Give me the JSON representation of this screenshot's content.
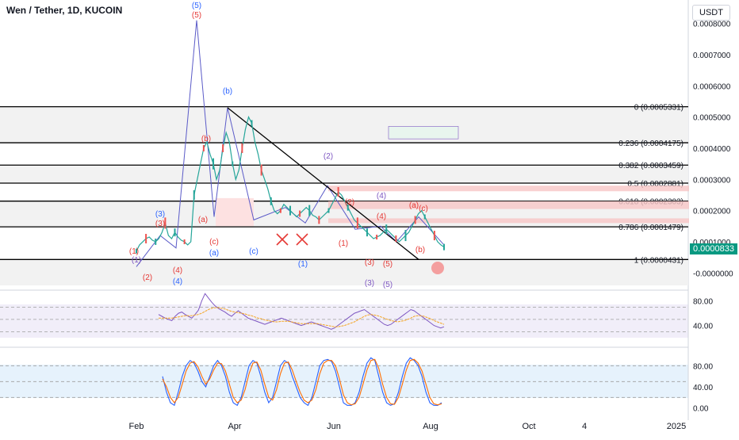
{
  "header": {
    "title": "Wen / Tether, 1D, KUCOIN",
    "currency": "USDT",
    "last_price": "0.0000833"
  },
  "colors": {
    "fib_line": "#000000",
    "fib_band": "#f2f2f2",
    "path": "#5b5bc8",
    "wave_red": "#e53935",
    "wave_blue": "#2962ff",
    "wave_purple": "#7e57c2",
    "zone_red": "#f7c6c6",
    "price_tag": "#089981",
    "rsi": "#7e57c2",
    "rsi_ma": "#f5a623",
    "stoch_k": "#2962ff",
    "stoch_d": "#ff6d00"
  },
  "chart_data": [
    {
      "type": "line",
      "pane": "price",
      "y_ticks": [
        "0.0008000",
        "0.0007000",
        "0.0006000",
        "0.0005000",
        "0.0004000",
        "0.0003000",
        "0.0002000",
        "0.0001000",
        "-0.0000000"
      ],
      "y_tick_values": [
        0.0008,
        0.0007,
        0.0006,
        0.0005,
        0.0004,
        0.0003,
        0.0002,
        0.0001,
        0.0
      ],
      "ylim": [
        -4e-05,
        0.00085
      ],
      "x_ticks": [
        "Feb",
        "Apr",
        "Jun",
        "Aug",
        "Oct",
        "4",
        "2025"
      ],
      "fib_levels": [
        {
          "ratio": "0",
          "value": 0.0005331,
          "label": "0 (0.0005331)"
        },
        {
          "ratio": "0.236",
          "value": 0.0004175,
          "label": "0.236 (0.0004175)"
        },
        {
          "ratio": "0.382",
          "value": 0.0003459,
          "label": "0.382 (0.0003459)"
        },
        {
          "ratio": "0.5",
          "value": 0.0002881,
          "label": "0.5 (0.0002881)"
        },
        {
          "ratio": "0.618",
          "value": 0.0002303,
          "label": "0.618 (0.0002303)"
        },
        {
          "ratio": "0.786",
          "value": 0.0001479,
          "label": "0.786 (0.0001479)"
        },
        {
          "ratio": "1",
          "value": 4.31e-05,
          "label": "1 (0.0000431)"
        }
      ],
      "price_series": [
        7e-05,
        9e-05,
        0.0001,
        0.00011,
        0.000115,
        0.000105,
        0.0001,
        0.00011,
        0.00013,
        0.00016,
        0.00012,
        0.00011,
        0.00013,
        0.000115,
        0.000105,
        0.0001,
        9e-05,
        0.0001,
        0.00025,
        0.0003,
        0.00035,
        0.0004,
        0.00042,
        0.00038,
        0.00035,
        0.0003,
        0.00033,
        0.0004,
        0.00045,
        0.00042,
        0.00035,
        0.0003,
        0.00033,
        0.0004,
        0.00046,
        0.0005,
        0.00048,
        0.00042,
        0.00038,
        0.00033,
        0.0003,
        0.00027,
        0.00023,
        0.0002,
        0.00019,
        0.0002,
        0.00022,
        0.00021,
        0.0002,
        0.00019,
        0.00018,
        0.00019,
        0.0002,
        0.00021,
        0.0002,
        0.000185,
        0.00018,
        0.00017,
        0.00018,
        0.00019,
        0.0002,
        0.00022,
        0.00024,
        0.00026,
        0.00025,
        0.00023,
        0.00021,
        0.00019,
        0.00017,
        0.00016,
        0.00015,
        0.00014,
        0.00013,
        0.00012,
        0.00011,
        0.000115,
        0.00012,
        0.00013,
        0.00014,
        0.00013,
        0.00012,
        0.00011,
        0.0001,
        0.00011,
        0.00012,
        0.00013,
        0.00015,
        0.00017,
        0.00019,
        0.0002,
        0.00018,
        0.00016,
        0.00014,
        0.00012,
        0.0001,
        9e-05,
        8.3e-05
      ],
      "wave_labels": [
        {
          "text": "(5)",
          "group": "blue"
        },
        {
          "text": "(5)",
          "group": "red"
        },
        {
          "text": "(b)",
          "group": "blue"
        },
        {
          "text": "(b)",
          "group": "red"
        },
        {
          "text": "(3)",
          "group": "blue"
        },
        {
          "text": "(3)",
          "group": "red"
        },
        {
          "text": "(a)",
          "group": "red"
        },
        {
          "text": "(c)",
          "group": "red"
        },
        {
          "text": "(a)",
          "group": "blue"
        },
        {
          "text": "(c)",
          "group": "blue"
        },
        {
          "text": "(1)",
          "group": "red"
        },
        {
          "text": "(1)",
          "group": "blue"
        },
        {
          "text": "(2)",
          "group": "red"
        },
        {
          "text": "(4)",
          "group": "red"
        },
        {
          "text": "(4)",
          "group": "blue"
        },
        {
          "text": "(2)",
          "group": "purple"
        },
        {
          "text": "(4)",
          "group": "purple"
        },
        {
          "text": "(4)",
          "group": "red"
        },
        {
          "text": "(2)",
          "group": "red"
        },
        {
          "text": "(1)",
          "group": "red"
        },
        {
          "text": "(1)",
          "group": "purple"
        },
        {
          "text": "(3)",
          "group": "red"
        },
        {
          "text": "(5)",
          "group": "red"
        },
        {
          "text": "(3)",
          "group": "purple"
        },
        {
          "text": "(5)",
          "group": "purple"
        },
        {
          "text": "(a)",
          "group": "red"
        },
        {
          "text": "(c)",
          "group": "red"
        },
        {
          "text": "(b)",
          "group": "red"
        }
      ]
    },
    {
      "type": "line",
      "pane": "rsi",
      "y_ticks": [
        "80.00",
        "40.00"
      ],
      "y_tick_values": [
        80,
        40
      ],
      "ylim": [
        15,
        95
      ],
      "series": [
        {
          "values": [
            58,
            55,
            52,
            50,
            48,
            55,
            60,
            62,
            58,
            55,
            52,
            58,
            65,
            80,
            92,
            85,
            78,
            72,
            68,
            65,
            62,
            58,
            55,
            60,
            64,
            60,
            56,
            52,
            50,
            48,
            46,
            44,
            42,
            44,
            46,
            48,
            50,
            52,
            50,
            48,
            46,
            44,
            42,
            40,
            42,
            44,
            46,
            44,
            42,
            40,
            38,
            36,
            34,
            36,
            40,
            44,
            48,
            52,
            56,
            60,
            62,
            64,
            66,
            62,
            58,
            54,
            50,
            46,
            42,
            40,
            42,
            46,
            50,
            54,
            58,
            62,
            66,
            64,
            60,
            56,
            52,
            48,
            44,
            40,
            38,
            36,
            38
          ]
        },
        {
          "values": [
            52,
            52,
            52,
            52,
            52,
            53,
            54,
            55,
            56,
            56,
            56,
            57,
            58,
            60,
            63,
            66,
            68,
            69,
            69,
            68,
            67,
            65,
            63,
            62,
            61,
            60,
            59,
            57,
            56,
            54,
            52,
            51,
            49,
            48,
            47,
            46,
            46,
            47,
            47,
            47,
            46,
            45,
            44,
            43,
            43,
            43,
            43,
            43,
            43,
            42,
            41,
            40,
            39,
            38,
            38,
            39,
            40,
            42,
            44,
            46,
            49,
            52,
            55,
            57,
            58,
            57,
            56,
            54,
            52,
            50,
            48,
            47,
            46,
            47,
            48,
            50,
            52,
            55,
            56,
            56,
            55,
            53,
            51,
            48,
            46,
            44,
            42
          ]
        }
      ]
    },
    {
      "type": "line",
      "pane": "stoch_rsi",
      "y_ticks": [
        "80.00",
        "40.00",
        "0.00"
      ],
      "y_tick_values": [
        80,
        40,
        0
      ],
      "ylim": [
        -5,
        100
      ],
      "series": [
        {
          "values": [
            60,
            30,
            10,
            5,
            30,
            60,
            80,
            90,
            85,
            70,
            50,
            40,
            60,
            80,
            90,
            80,
            60,
            30,
            10,
            5,
            20,
            50,
            80,
            90,
            85,
            60,
            30,
            10,
            20,
            50,
            80,
            90,
            85,
            60,
            40,
            20,
            10,
            5,
            20,
            50,
            80,
            90,
            92,
            88,
            70,
            40,
            10,
            5,
            5,
            10,
            30,
            60,
            85,
            95,
            90,
            60,
            30,
            10,
            5,
            8,
            30,
            60,
            85,
            95,
            90,
            80,
            60,
            30,
            10,
            5,
            5,
            10
          ]
        },
        {
          "values": [
            55,
            40,
            20,
            10,
            20,
            45,
            70,
            85,
            88,
            78,
            60,
            45,
            55,
            72,
            85,
            84,
            70,
            45,
            20,
            10,
            15,
            35,
            65,
            85,
            87,
            72,
            45,
            20,
            15,
            35,
            65,
            85,
            87,
            72,
            50,
            30,
            15,
            10,
            15,
            35,
            65,
            85,
            90,
            90,
            80,
            55,
            25,
            10,
            6,
            8,
            20,
            45,
            72,
            90,
            92,
            75,
            45,
            20,
            8,
            7,
            20,
            45,
            72,
            90,
            92,
            85,
            70,
            45,
            20,
            8,
            6,
            8
          ]
        }
      ]
    }
  ]
}
